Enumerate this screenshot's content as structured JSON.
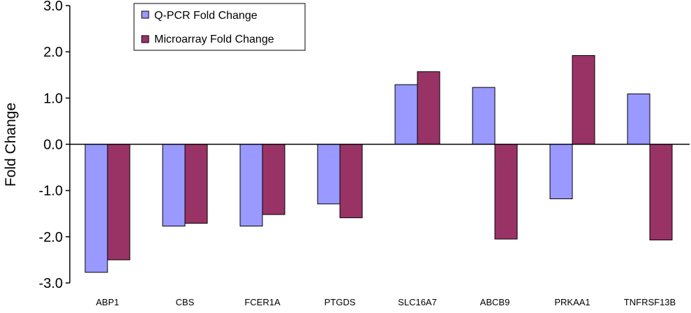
{
  "chart_data": {
    "type": "bar",
    "title": "",
    "xlabel": "",
    "ylabel": "Fold Change",
    "ylim": [
      -3.0,
      3.0
    ],
    "yticks": [
      "-3.0",
      "-2.0",
      "-1.0",
      "0.0",
      "1.0",
      "2.0",
      "3.0"
    ],
    "categories": [
      "ABP1",
      "CBS",
      "FCER1A",
      "PTGDS",
      "SLC16A7",
      "ABCB9",
      "PRKAA1",
      "TNFRSF13B"
    ],
    "series": [
      {
        "name": "Q-PCR Fold Change",
        "color": "#9999ff",
        "values": [
          -2.77,
          -1.77,
          -1.77,
          -1.29,
          1.29,
          1.23,
          -1.18,
          1.09
        ]
      },
      {
        "name": "Microarray Fold Change",
        "color": "#993366",
        "values": [
          -2.5,
          -1.71,
          -1.52,
          -1.59,
          1.57,
          -2.05,
          1.92,
          -2.07
        ]
      }
    ],
    "legend_position": "top-left",
    "grid": false
  }
}
